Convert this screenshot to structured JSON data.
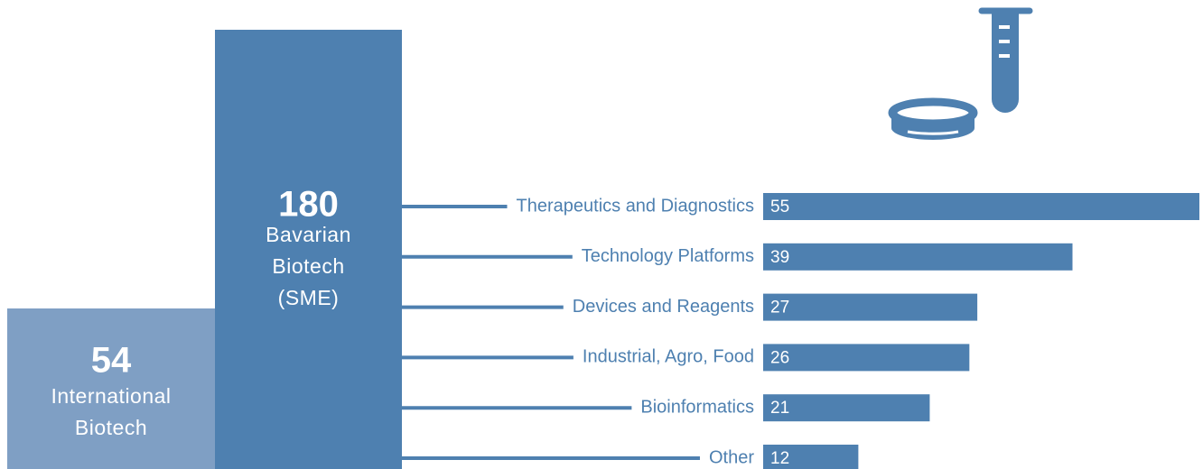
{
  "chart_data": {
    "type": "bar",
    "blocks": [
      {
        "value": 54,
        "label": [
          "International",
          "Biotech"
        ],
        "color": "#7f9fc4"
      },
      {
        "value": 180,
        "label": [
          "Bavarian",
          "Biotech",
          "(SME)"
        ],
        "color": "#4e80b0"
      }
    ],
    "categories": [
      "Therapeutics and Diagnostics",
      "Technology Platforms",
      "Devices and Reagents",
      "Industrial, Agro, Food",
      "Bioinformatics",
      "Other"
    ],
    "values": [
      55,
      39,
      27,
      26,
      21,
      12
    ],
    "color": "#4e80b0"
  }
}
